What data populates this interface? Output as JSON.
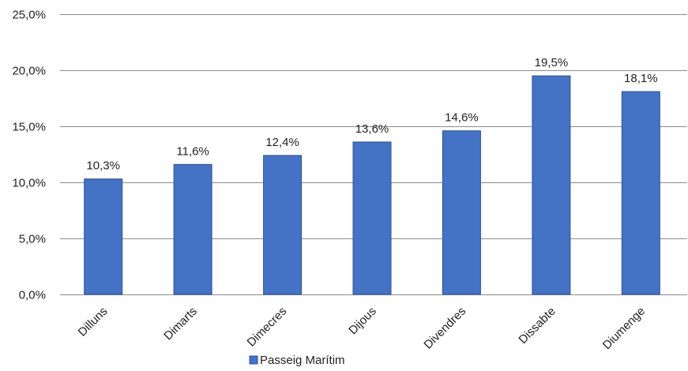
{
  "chart_data": {
    "type": "bar",
    "categories": [
      "Dilluns",
      "Dimarts",
      "Dimecres",
      "Dijous",
      "Divendres",
      "Dissabte",
      "Diumenge"
    ],
    "series": [
      {
        "name": "Passeig Marítim",
        "values": [
          10.3,
          11.6,
          12.4,
          13.6,
          14.6,
          19.5,
          18.1
        ],
        "data_labels": [
          "10,3%",
          "11,6%",
          "12,4%",
          "13,6%",
          "14,6%",
          "19,5%",
          "18,1%"
        ],
        "color": "#4472C4"
      }
    ],
    "ylim": [
      0,
      25
    ],
    "yticks": [
      0,
      5,
      10,
      15,
      20,
      25
    ],
    "ytick_labels": [
      "0,0%",
      "5,0%",
      "10,0%",
      "15,0%",
      "20,0%",
      "25,0%"
    ],
    "grid": true,
    "legend_position": "bottom",
    "title": "",
    "xlabel": "",
    "ylabel": ""
  }
}
